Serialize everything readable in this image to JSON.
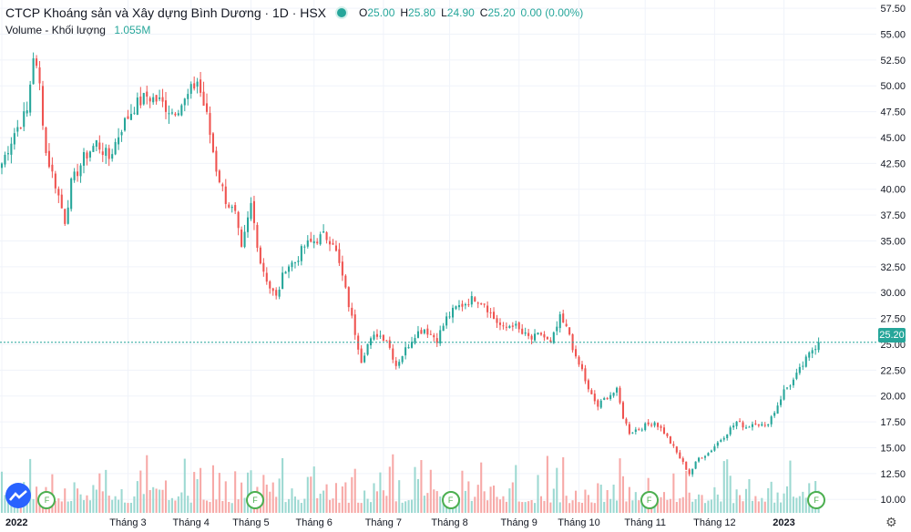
{
  "header": {
    "symbol_name": "CTCP Khoáng sản và Xây dựng Bình Dương",
    "interval": "1D",
    "exchange": "HSX",
    "ohlc": {
      "o_label": "O",
      "o": "25.00",
      "h_label": "H",
      "h": "25.80",
      "l_label": "L",
      "l": "24.90",
      "c_label": "C",
      "c": "25.20",
      "change": "0.00 (0.00%)"
    }
  },
  "volume_indicator": {
    "label": "Volume - Khối lượng",
    "value": "1.055M"
  },
  "last_price_tag": "25.20",
  "event_marker_label": "F",
  "colors": {
    "up": "#26a69a",
    "down": "#ef5350",
    "up_volume": "#9dd9d2",
    "down_volume": "#f7a9a7",
    "grid": "#f0f3fa",
    "axis_text": "#131722",
    "logo": "#2962ff"
  },
  "icons": {
    "logo": "tradingview-logo-icon",
    "settings": "gear-icon",
    "status": "market-status-dot-icon"
  },
  "chart_data": {
    "type": "candlestick",
    "y_axis": {
      "ticks": [
        "57.50",
        "55.00",
        "52.50",
        "50.00",
        "47.50",
        "45.00",
        "42.50",
        "40.00",
        "37.50",
        "35.00",
        "32.50",
        "30.00",
        "27.50",
        "25.00",
        "22.50",
        "20.00",
        "17.50",
        "15.00",
        "12.50",
        "10.00"
      ],
      "range": [
        8.7,
        58.3
      ],
      "side": "right"
    },
    "x_axis": {
      "ticks": [
        {
          "label": "2022",
          "day": 0
        },
        {
          "label": "Tháng 3",
          "day": 40
        },
        {
          "label": "Tháng 4",
          "day": 60
        },
        {
          "label": "Tháng 5",
          "day": 79
        },
        {
          "label": "Tháng 6",
          "day": 99
        },
        {
          "label": "Tháng 7",
          "day": 121
        },
        {
          "label": "Tháng 8",
          "day": 142
        },
        {
          "label": "Tháng 9",
          "day": 164
        },
        {
          "label": "Tháng 10",
          "day": 183
        },
        {
          "label": "Tháng 11",
          "day": 204
        },
        {
          "label": "Tháng 12",
          "day": 226
        },
        {
          "label": "2023",
          "day": 248
        }
      ],
      "total_days": 262
    },
    "close_anchors": [
      [
        0,
        42.5
      ],
      [
        4,
        45.5
      ],
      [
        8,
        47.5
      ],
      [
        10,
        53.0
      ],
      [
        12,
        50.0
      ],
      [
        14,
        43.5
      ],
      [
        17,
        40.5
      ],
      [
        20,
        37.0
      ],
      [
        22,
        40.5
      ],
      [
        26,
        43.0
      ],
      [
        30,
        44.5
      ],
      [
        34,
        43.0
      ],
      [
        38,
        46.0
      ],
      [
        42,
        48.0
      ],
      [
        46,
        49.0
      ],
      [
        50,
        48.5
      ],
      [
        54,
        47.5
      ],
      [
        58,
        48.5
      ],
      [
        62,
        50.5
      ],
      [
        65,
        47.0
      ],
      [
        68,
        42.0
      ],
      [
        71,
        39.0
      ],
      [
        74,
        37.5
      ],
      [
        76,
        34.0
      ],
      [
        79,
        38.5
      ],
      [
        82,
        33.0
      ],
      [
        85,
        30.5
      ],
      [
        87,
        29.5
      ],
      [
        90,
        32.5
      ],
      [
        93,
        33.0
      ],
      [
        96,
        34.5
      ],
      [
        99,
        35.0
      ],
      [
        102,
        35.5
      ],
      [
        105,
        35.0
      ],
      [
        108,
        31.5
      ],
      [
        111,
        27.5
      ],
      [
        114,
        23.5
      ],
      [
        116,
        25.0
      ],
      [
        119,
        26.0
      ],
      [
        122,
        25.5
      ],
      [
        125,
        23.0
      ],
      [
        128,
        24.5
      ],
      [
        131,
        26.0
      ],
      [
        134,
        26.5
      ],
      [
        138,
        25.5
      ],
      [
        141,
        27.5
      ],
      [
        144,
        28.5
      ],
      [
        147,
        29.0
      ],
      [
        150,
        29.5
      ],
      [
        153,
        29.0
      ],
      [
        156,
        27.5
      ],
      [
        159,
        26.5
      ],
      [
        162,
        27.0
      ],
      [
        165,
        26.0
      ],
      [
        168,
        25.5
      ],
      [
        171,
        26.0
      ],
      [
        174,
        25.0
      ],
      [
        177,
        27.5
      ],
      [
        180,
        26.0
      ],
      [
        182,
        23.5
      ],
      [
        184,
        22.5
      ],
      [
        186,
        20.5
      ],
      [
        189,
        19.0
      ],
      [
        192,
        20.0
      ],
      [
        195,
        20.5
      ],
      [
        197,
        18.0
      ],
      [
        199,
        16.5
      ],
      [
        203,
        17.0
      ],
      [
        207,
        17.5
      ],
      [
        210,
        16.5
      ],
      [
        213,
        15.0
      ],
      [
        216,
        13.5
      ],
      [
        218,
        12.5
      ],
      [
        221,
        14.0
      ],
      [
        224,
        14.5
      ],
      [
        227,
        15.5
      ],
      [
        230,
        16.5
      ],
      [
        233,
        17.5
      ],
      [
        236,
        17.0
      ],
      [
        239,
        17.5
      ],
      [
        242,
        17.0
      ],
      [
        245,
        18.5
      ],
      [
        248,
        20.5
      ],
      [
        251,
        21.5
      ],
      [
        254,
        23.0
      ],
      [
        257,
        24.5
      ],
      [
        259,
        25.2
      ]
    ],
    "volume_range": [
      0,
      20000000
    ],
    "last_price": 25.2,
    "event_marker_days": [
      14,
      80,
      142,
      205,
      258
    ]
  }
}
